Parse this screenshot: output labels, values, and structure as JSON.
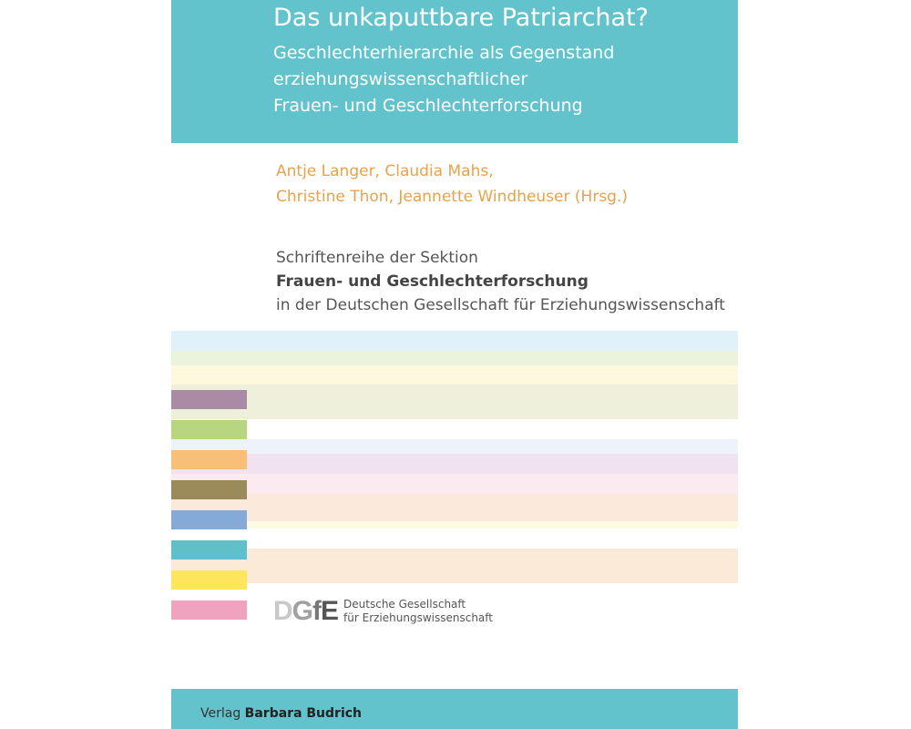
{
  "title": "Das unkaputtbare Patriarchat?",
  "subtitle_lines": [
    "Geschlechterhierarchie als Gegenstand",
    "erziehungswissenschaftlicher",
    "Frauen- und Geschlechterforschung"
  ],
  "authors_lines": [
    "Antje Langer, Claudia Mahs,",
    "Christine Thon, Jeannette Windheuser (Hrsg.)"
  ],
  "series": {
    "line1": "Schriftenreihe der Sektion",
    "line2": "Frauen- und Geschlechterforschung",
    "line3": "in der Deutschen Gesellschaft für Erziehungswissenschaft"
  },
  "logo": {
    "mark": "DGfE",
    "line1": "Deutsche Gesellschaft",
    "line2": "für Erziehungswissenschaft"
  },
  "publisher": {
    "prefix": "Verlag",
    "name": "Barbara Budrich"
  },
  "colors": {
    "accent": "#63c3cc",
    "authors": "#e8a24a",
    "blocks": [
      "#a98ba5",
      "#b8d57f",
      "#f8bf78",
      "#9b8a5a",
      "#85aad8",
      "#5ec1c9",
      "#fde55d",
      "#f0a3bf"
    ],
    "stripes": [
      "#e1f1f9",
      "#ecf3dc",
      "#fef9de",
      "#eff0dc",
      "#eef2fb",
      "#f0e2f0",
      "#fbeaef",
      "#fbe9dc",
      "#fef9e3",
      "#fcead9"
    ]
  }
}
